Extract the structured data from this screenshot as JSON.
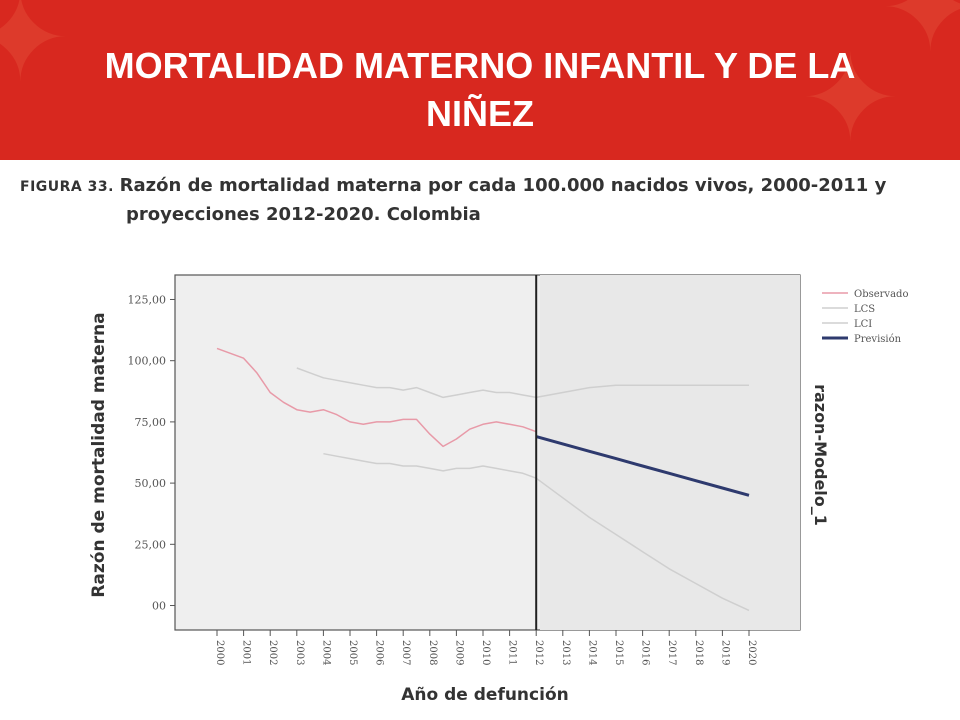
{
  "slide": {
    "title_line1": "MORTALIDAD MATERNO INFANTIL Y DE LA",
    "title_line2": "NIÑEZ",
    "figure_label": "FIGURA 33.",
    "caption_line1": "Razón de mortalidad materna por cada 100.000 nacidos vivos, 2000-2011 y",
    "caption_line2": "proyecciones 2012-2020. Colombia",
    "banner_color": "#d8281f"
  },
  "chart_data": {
    "type": "line",
    "title": "",
    "xlabel": "Año de defunción",
    "ylabel": "Razón de mortalidad materna",
    "right_label": "razon-Modelo_1",
    "ylim": [
      -10,
      135
    ],
    "yticks": [
      0,
      25,
      50,
      75,
      100,
      125
    ],
    "ytick_labels": [
      "00",
      "25,00",
      "50,00",
      "75,00",
      "100,00",
      "125,00"
    ],
    "xticks": [
      "2000",
      "2001",
      "2002",
      "2003",
      "2004",
      "2005",
      "2006",
      "2007",
      "2008",
      "2009",
      "2010",
      "2011",
      "2012",
      "2013",
      "2014",
      "2015",
      "2016",
      "2017",
      "2018",
      "2019",
      "2020"
    ],
    "forecast_start": "2012",
    "grid": false,
    "legend_position": "top-right",
    "legend": [
      "Observado",
      "LCS",
      "LCI",
      "Previsión"
    ],
    "series": [
      {
        "name": "Observado",
        "color": "#e89aa8",
        "x": [
          "2000",
          "2000.5",
          "2001",
          "2001.5",
          "2002",
          "2002.5",
          "2003",
          "2003.5",
          "2004",
          "2004.5",
          "2005",
          "2005.5",
          "2006",
          "2006.5",
          "2007",
          "2007.5",
          "2008",
          "2008.5",
          "2009",
          "2009.5",
          "2010",
          "2010.5",
          "2011",
          "2011.5",
          "2012"
        ],
        "values": [
          105,
          103,
          101,
          95,
          87,
          83,
          80,
          79,
          80,
          78,
          75,
          74,
          75,
          75,
          76,
          76,
          70,
          65,
          68,
          72,
          74,
          75,
          74,
          73,
          71
        ]
      },
      {
        "name": "LCS",
        "color": "#cfcfcf",
        "x": [
          "2003",
          "2003.5",
          "2004",
          "2004.5",
          "2005",
          "2005.5",
          "2006",
          "2006.5",
          "2007",
          "2007.5",
          "2008",
          "2008.5",
          "2009",
          "2009.5",
          "2010",
          "2010.5",
          "2011",
          "2011.5",
          "2012",
          "2013",
          "2014",
          "2015",
          "2016",
          "2017",
          "2018",
          "2019",
          "2020"
        ],
        "values": [
          97,
          95,
          93,
          92,
          91,
          90,
          89,
          89,
          88,
          89,
          87,
          85,
          86,
          87,
          88,
          87,
          87,
          86,
          85,
          87,
          89,
          90,
          90,
          90,
          90,
          90,
          90
        ]
      },
      {
        "name": "LCI",
        "color": "#cfcfcf",
        "x": [
          "2004",
          "2004.5",
          "2005",
          "2005.5",
          "2006",
          "2006.5",
          "2007",
          "2007.5",
          "2008",
          "2008.5",
          "2009",
          "2009.5",
          "2010",
          "2010.5",
          "2011",
          "2011.5",
          "2012",
          "2013",
          "2014",
          "2015",
          "2016",
          "2017",
          "2018",
          "2019",
          "2020"
        ],
        "values": [
          62,
          61,
          60,
          59,
          58,
          58,
          57,
          57,
          56,
          55,
          56,
          56,
          57,
          56,
          55,
          54,
          52,
          44,
          36,
          29,
          22,
          15,
          9,
          3,
          -2
        ]
      },
      {
        "name": "Previsión",
        "color": "#2e3a6e",
        "x": [
          "2012",
          "2013",
          "2014",
          "2015",
          "2016",
          "2017",
          "2018",
          "2019",
          "2020"
        ],
        "values": [
          69,
          66,
          63,
          60,
          57,
          54,
          51,
          48,
          45
        ]
      }
    ]
  }
}
